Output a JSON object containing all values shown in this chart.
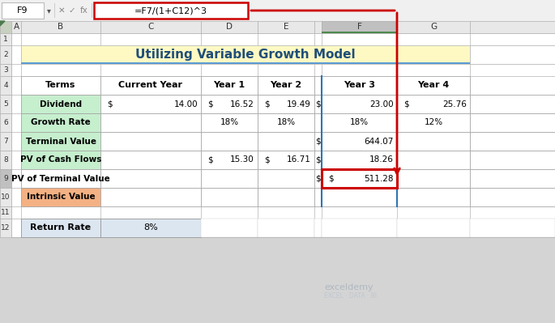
{
  "title": "Utilizing Variable Growth Model",
  "formula_bar_cell": "F9",
  "formula_bar_text": "=F7/(1+C12)^3",
  "title_bg": "#fef9c3",
  "title_color": "#1f4e79",
  "title_border_color": "#a8c4e0",
  "green_bg": "#c6efce",
  "salmon_bg": "#f4b183",
  "selected_col_bg": "#c8c8c8",
  "selected_col_highlight": "#d4e8c2",
  "formula_box_border": "#cc0000",
  "red_arrow_color": "#cc0000",
  "return_rate_bg": "#dce6f1",
  "grid_color": "#a0a0a0",
  "header_bg": "#f2f2f2",
  "wb_bg": "#d4d4d4",
  "formula_bar_bg": "#f0f0f0",
  "col_header_bg": "#e8e8e8",
  "col_header_sel": "#c0c0c0",
  "row_header_bg": "#e8e8e8",
  "row_header_sel": "#c0c0c0",
  "white": "#ffffff",
  "rows_config": [
    {
      "label": "Dividend",
      "bg": "#c6efce"
    },
    {
      "label": "Growth Rate",
      "bg": "#c6efce"
    },
    {
      "label": "Terminal Value",
      "bg": "#c6efce"
    },
    {
      "label": "PV of Cash Flows",
      "bg": "#c6efce"
    },
    {
      "label": "PV of Terminal Value",
      "bg": "#ffffff"
    },
    {
      "label": "Intrinsic Value",
      "bg": "#f4b183"
    }
  ],
  "return_rate_label": "Return Rate",
  "return_rate_value": "8%",
  "exceldemy_color": "#b0b8c0",
  "exceldemy_bi_color": "#c0c8d0"
}
